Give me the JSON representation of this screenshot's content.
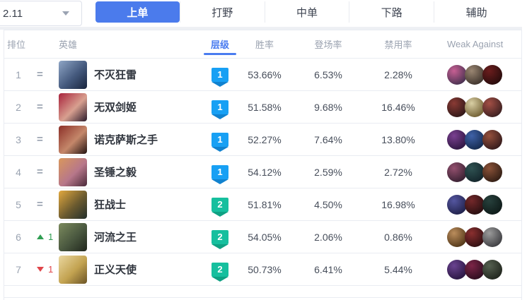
{
  "version_selector": {
    "value": "2.11"
  },
  "tabs": [
    {
      "label": "上单",
      "active": true
    },
    {
      "label": "打野",
      "active": false
    },
    {
      "label": "中单",
      "active": false
    },
    {
      "label": "下路",
      "active": false
    },
    {
      "label": "辅助",
      "active": false
    }
  ],
  "table": {
    "headers": {
      "rank": "排位",
      "champion": "英雄",
      "tier": "层级",
      "win_rate": "胜率",
      "pick_rate": "登场率",
      "ban_rate": "禁用率",
      "weak_against": "Weak Against"
    },
    "rows": [
      {
        "rank": "1",
        "change": "same",
        "change_value": "",
        "name": "不灭狂雷",
        "tier": "1",
        "win_rate": "53.66%",
        "pick_rate": "6.53%",
        "ban_rate": "2.28%",
        "avatar_colors": [
          "#8fa6c6",
          "#44597d",
          "#18243c"
        ],
        "weak_against_colors": [
          [
            "#c75f93",
            "#44304e"
          ],
          [
            "#9a8672",
            "#3c322b"
          ],
          [
            "#6b1d1d",
            "#260c0c"
          ]
        ]
      },
      {
        "rank": "2",
        "change": "same",
        "change_value": "",
        "name": "无双剑姬",
        "tier": "1",
        "win_rate": "51.58%",
        "pick_rate": "9.68%",
        "ban_rate": "16.46%",
        "avatar_colors": [
          "#a8223c",
          "#d8a090",
          "#2a1a2a"
        ],
        "weak_against_colors": [
          [
            "#8a3a34",
            "#2e1818"
          ],
          [
            "#d9cfa4",
            "#6e5c30"
          ],
          [
            "#a34f45",
            "#3a1f20"
          ]
        ]
      },
      {
        "rank": "3",
        "change": "same",
        "change_value": "",
        "name": "诺克萨斯之手",
        "tier": "1",
        "win_rate": "52.27%",
        "pick_rate": "7.64%",
        "ban_rate": "13.80%",
        "avatar_colors": [
          "#8c2f28",
          "#c4876a",
          "#231312"
        ],
        "weak_against_colors": [
          [
            "#7a4090",
            "#2c1540"
          ],
          [
            "#3f62a8",
            "#14294c"
          ],
          [
            "#95503c",
            "#331a1b"
          ]
        ]
      },
      {
        "rank": "4",
        "change": "same",
        "change_value": "",
        "name": "圣锤之毅",
        "tier": "1",
        "win_rate": "54.12%",
        "pick_rate": "2.59%",
        "ban_rate": "2.72%",
        "avatar_colors": [
          "#d9975c",
          "#b7778a",
          "#4a2a3a"
        ],
        "weak_against_colors": [
          [
            "#93506e",
            "#351f30"
          ],
          [
            "#2f5252",
            "#13242a"
          ],
          [
            "#8a5238",
            "#301d14"
          ]
        ]
      },
      {
        "rank": "5",
        "change": "same",
        "change_value": "",
        "name": "狂战士",
        "tier": "2",
        "win_rate": "51.81%",
        "pick_rate": "4.50%",
        "ban_rate": "16.98%",
        "avatar_colors": [
          "#e2a93f",
          "#6b5a2f",
          "#232e2b"
        ],
        "weak_against_colors": [
          [
            "#5456a0",
            "#1f2048"
          ],
          [
            "#73282a",
            "#260e10"
          ],
          [
            "#27403c",
            "#0e1a18"
          ]
        ]
      },
      {
        "rank": "6",
        "change": "up",
        "change_value": "1",
        "name": "河流之王",
        "tier": "2",
        "win_rate": "54.05%",
        "pick_rate": "2.06%",
        "ban_rate": "0.86%",
        "avatar_colors": [
          "#7b8a5d",
          "#49573f",
          "#20261c"
        ],
        "weak_against_colors": [
          [
            "#bb8d5c",
            "#4f3517"
          ],
          [
            "#8a2f2f",
            "#2e0f12"
          ],
          [
            "#9b9b9b",
            "#3c3c40"
          ]
        ]
      },
      {
        "rank": "7",
        "change": "down",
        "change_value": "1",
        "name": "正义天使",
        "tier": "2",
        "win_rate": "50.73%",
        "pick_rate": "6.41%",
        "ban_rate": "5.44%",
        "avatar_colors": [
          "#ead7a0",
          "#c2a250",
          "#6b5426"
        ],
        "weak_against_colors": [
          [
            "#6a4390",
            "#281540"
          ],
          [
            "#7c2547",
            "#2b0d1e"
          ],
          [
            "#556050",
            "#20251d"
          ]
        ]
      }
    ]
  },
  "colors": {
    "accent_blue": "#4b7bec",
    "tier1_blue": "#18a0f4",
    "tier2_teal": "#16bf9e",
    "up_green": "#2f9e52",
    "down_red": "#e0454a"
  }
}
